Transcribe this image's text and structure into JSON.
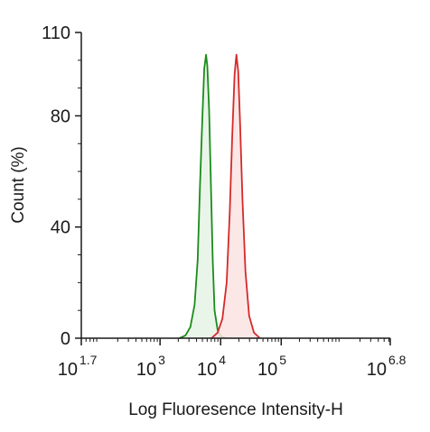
{
  "chart_data": {
    "type": "area",
    "title": "",
    "xlabel": "Log Fluoresence Intensity-H",
    "ylabel": "Count  (%)",
    "x_scale": "log10",
    "xlim": [
      1.7,
      6.8
    ],
    "ylim": [
      0,
      110
    ],
    "y_ticks": [
      0,
      40,
      80,
      110
    ],
    "x_ticks": [
      {
        "base": "10",
        "exp": "1.7",
        "value": 1.7
      },
      {
        "base": "10",
        "exp": "3",
        "value": 3
      },
      {
        "base": "10",
        "exp": "4",
        "value": 4
      },
      {
        "base": "10",
        "exp": "5",
        "value": 5
      },
      {
        "base": "10",
        "exp": "6.8",
        "value": 6.8
      }
    ],
    "grid": false,
    "legend": "none",
    "series": [
      {
        "color": "#1a8c1a",
        "fill": "#e6f3e6",
        "points": [
          [
            3.32,
            0
          ],
          [
            3.42,
            1
          ],
          [
            3.5,
            4
          ],
          [
            3.57,
            12
          ],
          [
            3.62,
            28
          ],
          [
            3.66,
            55
          ],
          [
            3.7,
            80
          ],
          [
            3.73,
            97
          ],
          [
            3.76,
            102
          ],
          [
            3.78,
            98
          ],
          [
            3.81,
            82
          ],
          [
            3.84,
            55
          ],
          [
            3.87,
            28
          ],
          [
            3.9,
            10
          ],
          [
            3.95,
            3
          ],
          [
            4.0,
            0.8
          ],
          [
            4.08,
            0
          ]
        ]
      },
      {
        "color": "#d42a2a",
        "fill": "#fbe3e3",
        "points": [
          [
            3.85,
            0
          ],
          [
            3.95,
            2
          ],
          [
            4.03,
            7
          ],
          [
            4.1,
            20
          ],
          [
            4.15,
            45
          ],
          [
            4.19,
            72
          ],
          [
            4.23,
            95
          ],
          [
            4.26,
            102
          ],
          [
            4.29,
            96
          ],
          [
            4.32,
            78
          ],
          [
            4.36,
            50
          ],
          [
            4.41,
            24
          ],
          [
            4.47,
            8
          ],
          [
            4.55,
            2
          ],
          [
            4.65,
            0
          ]
        ]
      }
    ]
  }
}
